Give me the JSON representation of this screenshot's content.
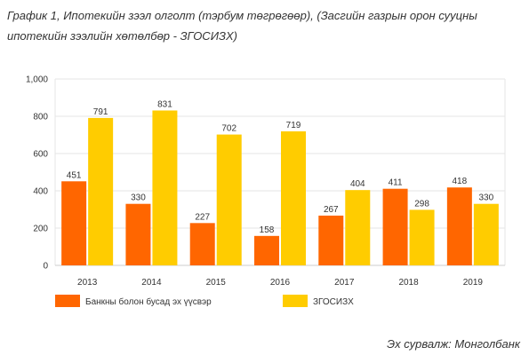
{
  "title_lines": [
    "График 1, Ипотекийн зээл олголт (тэрбум төгрөгөөр),  (Засгийн газрын орон сууцны",
    "ипотекийн зээлийн хөтөлбөр - ЗГОСИЗХ)"
  ],
  "source": "Эх сурвалж: Монголбанк",
  "colors": {
    "series1": "#ff6600",
    "series2": "#ffcc00",
    "grid": "#e6e6e6"
  },
  "chart_data": {
    "type": "bar",
    "title": "",
    "xlabel": "",
    "ylabel": "",
    "categories": [
      "2013",
      "2014",
      "2015",
      "2016",
      "2017",
      "2018",
      "2019"
    ],
    "series": [
      {
        "name": "Банкны болон бусад эх үүсвэр",
        "values": [
          451,
          330,
          227,
          158,
          267,
          411,
          418
        ]
      },
      {
        "name": "ЗГОСИЗХ",
        "values": [
          791,
          831,
          702,
          719,
          404,
          298,
          330
        ]
      }
    ],
    "ylim": [
      0,
      1000
    ],
    "yticks": [
      0,
      200,
      400,
      600,
      800,
      1000
    ],
    "ytick_labels": [
      "0",
      "200",
      "400",
      "600",
      "800",
      "1,000"
    ],
    "grid": true,
    "legend_position": "bottom"
  }
}
